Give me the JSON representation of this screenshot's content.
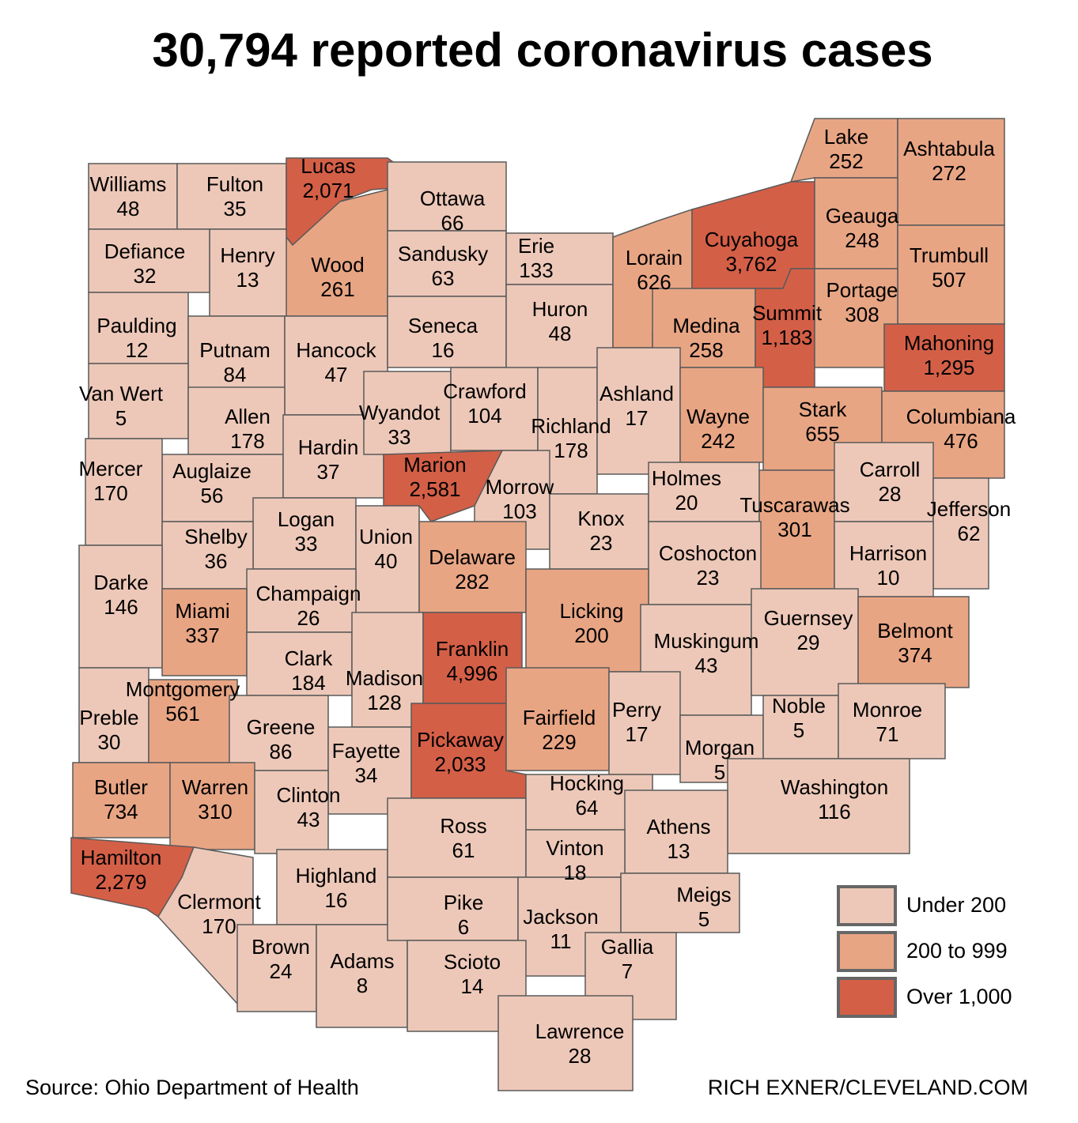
{
  "title": "30,794 reported coronavirus cases",
  "source": "Source: Ohio Department of Health",
  "credit": "RICH EXNER/CLEVELAND.COM",
  "legend": {
    "breaks": [
      200,
      1000
    ],
    "items": [
      {
        "label": "Under 200",
        "color": "#edc8b8"
      },
      {
        "label": "200 to 999",
        "color": "#e8a584"
      },
      {
        "label": "Over 1,000",
        "color": "#d45f47"
      }
    ]
  },
  "counties": [
    {
      "name": "Williams",
      "cases": 48
    },
    {
      "name": "Fulton",
      "cases": 35
    },
    {
      "name": "Lucas",
      "cases": {
        "value": 2071,
        "label": "2,071"
      }
    },
    {
      "name": "Ottawa",
      "cases": 66
    },
    {
      "name": "Wood",
      "cases": 261
    },
    {
      "name": "Henry",
      "cases": 13
    },
    {
      "name": "Defiance",
      "cases": 32
    },
    {
      "name": "Paulding",
      "cases": 12
    },
    {
      "name": "Putnam",
      "cases": 84
    },
    {
      "name": "Hancock",
      "cases": 47
    },
    {
      "name": "Sandusky",
      "cases": 63
    },
    {
      "name": "Erie",
      "cases": 133
    },
    {
      "name": "Seneca",
      "cases": 16
    },
    {
      "name": "Huron",
      "cases": 48
    },
    {
      "name": "Lorain",
      "cases": 626
    },
    {
      "name": "Cuyahoga",
      "cases": {
        "value": 3762,
        "label": "3,762"
      }
    },
    {
      "name": "Medina",
      "cases": 258
    },
    {
      "name": "Summit",
      "cases": {
        "value": 1183,
        "label": "1,183"
      }
    },
    {
      "name": "Lake",
      "cases": 252
    },
    {
      "name": "Ashtabula",
      "cases": 272
    },
    {
      "name": "Geauga",
      "cases": 248
    },
    {
      "name": "Trumbull",
      "cases": 507
    },
    {
      "name": "Portage",
      "cases": 308
    },
    {
      "name": "Mahoning",
      "cases": {
        "value": 1295,
        "label": "1,295"
      }
    },
    {
      "name": "Van Wert",
      "cases": 5
    },
    {
      "name": "Allen",
      "cases": 178
    },
    {
      "name": "Auglaize",
      "cases": 56
    },
    {
      "name": "Mercer",
      "cases": 170
    },
    {
      "name": "Hardin",
      "cases": 37
    },
    {
      "name": "Wyandot",
      "cases": 33
    },
    {
      "name": "Crawford",
      "cases": 104
    },
    {
      "name": "Richland",
      "cases": 178
    },
    {
      "name": "Ashland",
      "cases": 17
    },
    {
      "name": "Wayne",
      "cases": 242
    },
    {
      "name": "Stark",
      "cases": 655
    },
    {
      "name": "Columbiana",
      "cases": 476
    },
    {
      "name": "Marion",
      "cases": {
        "value": 2581,
        "label": "2,581"
      }
    },
    {
      "name": "Morrow",
      "cases": 103
    },
    {
      "name": "Knox",
      "cases": 23
    },
    {
      "name": "Holmes",
      "cases": 20
    },
    {
      "name": "Tuscarawas",
      "cases": 301
    },
    {
      "name": "Carroll",
      "cases": 28
    },
    {
      "name": "Jefferson",
      "cases": 62
    },
    {
      "name": "Harrison",
      "cases": 10
    },
    {
      "name": "Coshocton",
      "cases": 23
    },
    {
      "name": "Logan",
      "cases": 33
    },
    {
      "name": "Union",
      "cases": 40
    },
    {
      "name": "Shelby",
      "cases": 36
    },
    {
      "name": "Darke",
      "cases": 146
    },
    {
      "name": "Delaware",
      "cases": 282
    },
    {
      "name": "Licking",
      "cases": 200
    },
    {
      "name": "Champaign",
      "cases": 26
    },
    {
      "name": "Miami",
      "cases": 337
    },
    {
      "name": "Clark",
      "cases": 184
    },
    {
      "name": "Madison",
      "cases": 128
    },
    {
      "name": "Franklin",
      "cases": {
        "value": 4996,
        "label": "4,996"
      }
    },
    {
      "name": "Muskingum",
      "cases": 43
    },
    {
      "name": "Guernsey",
      "cases": 29
    },
    {
      "name": "Belmont",
      "cases": 374
    },
    {
      "name": "Preble",
      "cases": 30
    },
    {
      "name": "Montgomery",
      "cases": 561
    },
    {
      "name": "Greene",
      "cases": 86
    },
    {
      "name": "Fayette",
      "cases": 34
    },
    {
      "name": "Pickaway",
      "cases": {
        "value": 2033,
        "label": "2,033"
      }
    },
    {
      "name": "Fairfield",
      "cases": 229
    },
    {
      "name": "Perry",
      "cases": 17
    },
    {
      "name": "Morgan",
      "cases": 5
    },
    {
      "name": "Noble",
      "cases": 5
    },
    {
      "name": "Monroe",
      "cases": 71
    },
    {
      "name": "Washington",
      "cases": 116
    },
    {
      "name": "Butler",
      "cases": 734
    },
    {
      "name": "Warren",
      "cases": 310
    },
    {
      "name": "Clinton",
      "cases": 43
    },
    {
      "name": "Hamilton",
      "cases": {
        "value": 2279,
        "label": "2,279"
      }
    },
    {
      "name": "Clermont",
      "cases": 170
    },
    {
      "name": "Highland",
      "cases": 16
    },
    {
      "name": "Brown",
      "cases": 24
    },
    {
      "name": "Adams",
      "cases": 8
    },
    {
      "name": "Ross",
      "cases": 61
    },
    {
      "name": "Hocking",
      "cases": 64
    },
    {
      "name": "Athens",
      "cases": 13
    },
    {
      "name": "Vinton",
      "cases": 18
    },
    {
      "name": "Pike",
      "cases": 6
    },
    {
      "name": "Jackson",
      "cases": 11
    },
    {
      "name": "Meigs",
      "cases": 5
    },
    {
      "name": "Gallia",
      "cases": 7
    },
    {
      "name": "Scioto",
      "cases": 14
    },
    {
      "name": "Lawrence",
      "cases": 28
    }
  ]
}
